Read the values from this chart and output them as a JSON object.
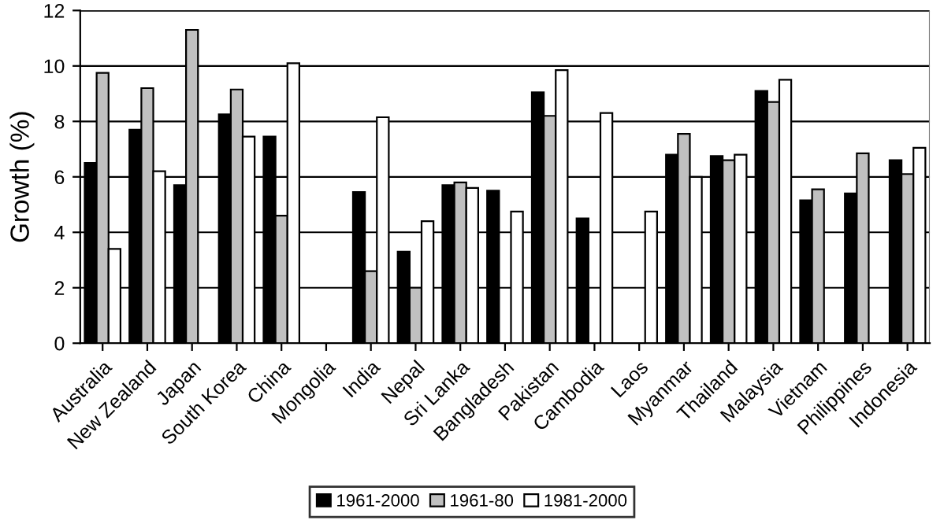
{
  "chart_data": {
    "type": "bar",
    "ylabel": "Growth (%)",
    "categories": [
      "Australia",
      "New Zealand",
      "Japan",
      "South Korea",
      "China",
      "Mongolia",
      "India",
      "Nepal",
      "Sri Lanka",
      "Bangladesh",
      "Pakistan",
      "Cambodia",
      "Laos",
      "Myanmar",
      "Thailand",
      "Malaysia",
      "Vietnam",
      "Philippines",
      "Indonesia"
    ],
    "series": [
      {
        "name": "1961-2000",
        "color": "#000000",
        "values": [
          6.5,
          7.7,
          5.7,
          8.25,
          7.45,
          null,
          5.45,
          3.3,
          5.7,
          5.5,
          9.05,
          4.5,
          null,
          6.8,
          6.75,
          9.1,
          5.15,
          5.4,
          6.6
        ]
      },
      {
        "name": "1961-80",
        "color": "#c0c0c0",
        "values": [
          9.75,
          9.2,
          11.3,
          9.15,
          4.6,
          null,
          2.6,
          2.0,
          5.8,
          null,
          8.2,
          null,
          null,
          7.55,
          6.6,
          8.7,
          5.55,
          6.85,
          6.1
        ]
      },
      {
        "name": "1981-2000",
        "color": "#ffffff",
        "values": [
          3.4,
          6.2,
          null,
          7.45,
          10.1,
          null,
          8.15,
          4.4,
          5.6,
          4.75,
          9.85,
          8.3,
          4.75,
          6.0,
          6.8,
          9.5,
          null,
          null,
          7.05
        ]
      }
    ],
    "ylim": [
      0,
      12
    ],
    "yticks": [
      0,
      2,
      4,
      6,
      8,
      10,
      12
    ],
    "grid": "y",
    "legend": "bottom"
  }
}
